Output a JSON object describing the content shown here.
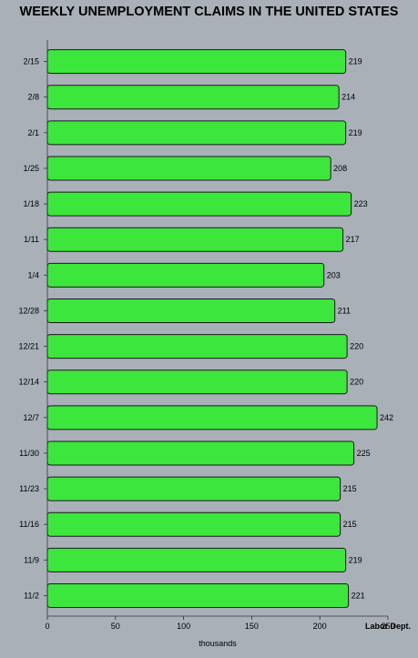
{
  "chart_data": {
    "type": "bar",
    "orientation": "horizontal",
    "title": "WEEKLY UNEMPLOYMENT CLAIMS IN THE UNITED STATES",
    "xlabel": "thousands",
    "ylabel": "",
    "source": "Labor Dept.",
    "categories": [
      "2/15",
      "2/8",
      "2/1",
      "1/25",
      "1/18",
      "1/11",
      "1/4",
      "12/28",
      "12/21",
      "12/14",
      "12/7",
      "11/30",
      "11/23",
      "11/16",
      "11/9",
      "11/2"
    ],
    "values": [
      219,
      214,
      219,
      208,
      223,
      217,
      203,
      211,
      220,
      220,
      242,
      225,
      215,
      215,
      219,
      221
    ],
    "xlim": [
      0,
      250
    ],
    "ticks": [
      0,
      50,
      100,
      150,
      200,
      250
    ],
    "bar_color": "#3de63d",
    "bar_border": "#1a1a1a",
    "background": "#a9b0b8",
    "grid": false
  }
}
